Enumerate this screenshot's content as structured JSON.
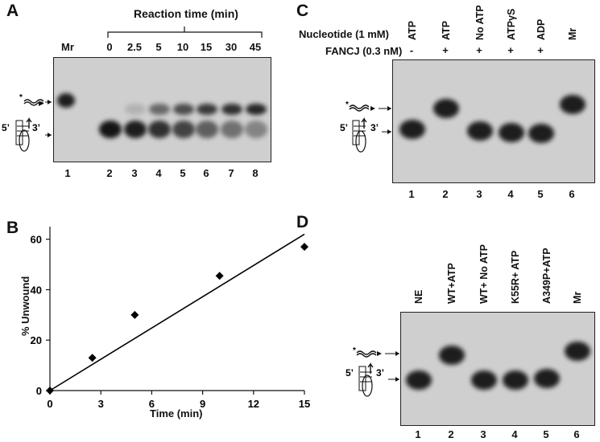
{
  "panels": {
    "A": {
      "letter": "A",
      "title": "Reaction time (min)",
      "top_labels": [
        "Mr",
        "0",
        "2.5",
        "5",
        "10",
        "15",
        "30",
        "45"
      ],
      "lane_numbers": [
        "1",
        "2",
        "3",
        "4",
        "5",
        "6",
        "7",
        "8"
      ]
    },
    "B": {
      "letter": "B",
      "xlabel": "Time (min)",
      "ylabel": "% Unwound"
    },
    "C": {
      "letter": "C",
      "row1_label": "Nucleotide (1 mM)",
      "row2_label": "FANCJ (0.3 nM)",
      "nucleotides": [
        "ATP",
        "ATP",
        "No ATP",
        "ATPγS",
        "ADP",
        "Mr"
      ],
      "fancj": [
        "-",
        "+",
        "+",
        "+",
        "+"
      ],
      "lane_numbers": [
        "1",
        "2",
        "3",
        "4",
        "5",
        "6"
      ]
    },
    "D": {
      "letter": "D",
      "lane_labels": [
        "NE",
        "WT+ATP",
        "WT+ No ATP",
        "K55R+ ATP",
        "A349P+ATP",
        "Mr"
      ],
      "lane_numbers": [
        "1",
        "2",
        "3",
        "4",
        "5",
        "6"
      ]
    }
  },
  "substrate_labels": {
    "five_prime": "5’",
    "three_prime": "3’",
    "star": "*"
  },
  "chart_data": {
    "type": "scatter",
    "xlabel": "Time (min)",
    "ylabel": "% Unwound",
    "x": [
      0,
      2.5,
      5,
      10,
      15
    ],
    "y": [
      0,
      13,
      30,
      45.5,
      57
    ],
    "fit_line": {
      "x": [
        0,
        15
      ],
      "y": [
        0,
        62
      ]
    },
    "xlim": [
      0,
      15
    ],
    "ylim": [
      0,
      65
    ],
    "xticks": [
      0,
      3,
      6,
      9,
      12,
      15
    ],
    "yticks": [
      0,
      20,
      40,
      60
    ],
    "marker": "diamond",
    "colors": {
      "marker": "#000000",
      "line": "#000000"
    }
  }
}
